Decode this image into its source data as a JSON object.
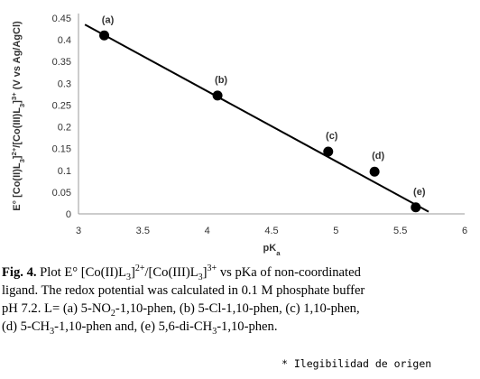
{
  "chart_data": {
    "type": "scatter",
    "x": [
      3.2,
      4.08,
      4.94,
      5.3,
      5.62
    ],
    "values": [
      0.41,
      0.272,
      0.143,
      0.097,
      0.015
    ],
    "point_labels": [
      "(a)",
      "(b)",
      "(c)",
      "(d)",
      "(e)"
    ],
    "color": "#000000",
    "trendline": {
      "x": [
        3.05,
        5.72
      ],
      "values": [
        0.435,
        0.005
      ]
    },
    "xlim": [
      3,
      6
    ],
    "xticks": [
      3,
      3.5,
      4,
      4.5,
      5,
      5.5,
      6
    ],
    "ylim": [
      0,
      0.45
    ],
    "yticks": [
      0,
      0.05,
      0.1,
      0.15,
      0.2,
      0.25,
      0.3,
      0.35,
      0.4,
      0.45
    ],
    "grid": false,
    "xlabel": [
      {
        "text": "pK",
        "style": "normal"
      },
      {
        "text": "a",
        "style": "sub"
      }
    ],
    "ylabel": [
      {
        "text": "E° [Co(II)L",
        "style": "normal"
      },
      {
        "text": "3",
        "style": "sub"
      },
      {
        "text": "]",
        "style": "normal"
      },
      {
        "text": "2+",
        "style": "sup"
      },
      {
        "text": "/[Co(III)L",
        "style": "normal"
      },
      {
        "text": "3",
        "style": "sub"
      },
      {
        "text": "]",
        "style": "normal"
      },
      {
        "text": "3+",
        "style": "sup"
      },
      {
        "text": " (V vs Ag/AgCl)",
        "style": "normal"
      }
    ]
  },
  "caption": [
    [
      {
        "text": "Fig. 4.",
        "style": "bold"
      },
      {
        "text": " Plot E° [Co(II)L",
        "style": "normal"
      },
      {
        "text": "3",
        "style": "sub"
      },
      {
        "text": "]",
        "style": "normal"
      },
      {
        "text": "2+",
        "style": "sup"
      },
      {
        "text": "/[Co(III)L",
        "style": "normal"
      },
      {
        "text": "3",
        "style": "sub"
      },
      {
        "text": "]",
        "style": "normal"
      },
      {
        "text": "3+",
        "style": "sup"
      },
      {
        "text": " vs pKa of non-coordinated",
        "style": "normal"
      }
    ],
    [
      {
        "text": "ligand. The redox potential was calculated in 0.1 M phosphate buffer",
        "style": "normal"
      }
    ],
    [
      {
        "text": "pH 7.2. L= (a) 5-NO",
        "style": "normal"
      },
      {
        "text": "2",
        "style": "sub"
      },
      {
        "text": "-1,10-phen, (b) 5-Cl-1,10-phen, (c) 1,10-phen,",
        "style": "normal"
      }
    ],
    [
      {
        "text": "(d) 5-CH",
        "style": "normal"
      },
      {
        "text": "3",
        "style": "sub"
      },
      {
        "text": "-1,10-phen and, (e) 5,6-di-CH",
        "style": "normal"
      },
      {
        "text": "3",
        "style": "sub"
      },
      {
        "text": "-1,10-phen.",
        "style": "normal"
      }
    ]
  ],
  "footnote": "* Ilegibilidad de origen"
}
